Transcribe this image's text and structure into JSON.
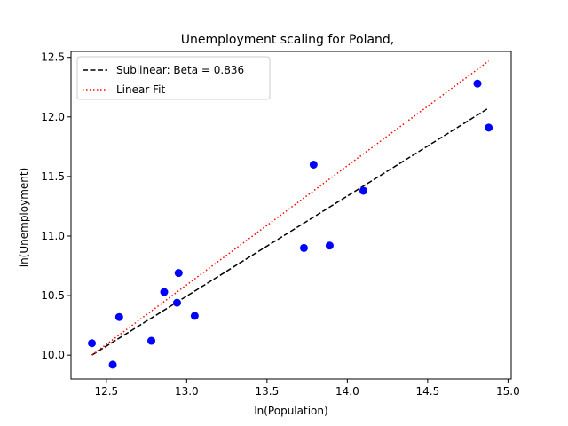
{
  "chart_data": {
    "type": "scatter",
    "title": "Unemployment scaling for Poland,",
    "xlabel": "ln(Population)",
    "ylabel": "ln(Unemployment)",
    "xlim": [
      12.28,
      15.02
    ],
    "ylim": [
      9.8,
      12.55
    ],
    "xticks": [
      12.5,
      13.0,
      13.5,
      14.0,
      14.5,
      15.0
    ],
    "xtick_labels": [
      "12.5",
      "13.0",
      "13.5",
      "14.0",
      "14.5",
      "15.0"
    ],
    "yticks": [
      10.0,
      10.5,
      11.0,
      11.5,
      12.0,
      12.5
    ],
    "ytick_labels": [
      "10.0",
      "10.5",
      "11.0",
      "11.5",
      "12.0",
      "12.5"
    ],
    "grid": false,
    "legend_position": "upper-left",
    "points": {
      "color": "#0000ff",
      "x": [
        12.41,
        12.54,
        12.58,
        12.78,
        12.86,
        12.94,
        12.95,
        13.05,
        13.73,
        13.79,
        13.89,
        14.1,
        14.81,
        14.88
      ],
      "y": [
        10.1,
        9.92,
        10.32,
        10.12,
        10.53,
        10.44,
        10.69,
        10.33,
        10.9,
        11.6,
        10.92,
        11.38,
        12.28,
        11.91
      ]
    },
    "series": [
      {
        "name": "Sublinear: Beta = 0.836",
        "style": "dashed",
        "color": "#000000",
        "x": [
          12.41,
          14.88
        ],
        "y": [
          10.0,
          12.075
        ]
      },
      {
        "name": "Linear Fit",
        "style": "dotted",
        "color": "#ff0000",
        "x": [
          12.41,
          14.88
        ],
        "y": [
          10.0,
          12.47
        ]
      }
    ]
  }
}
